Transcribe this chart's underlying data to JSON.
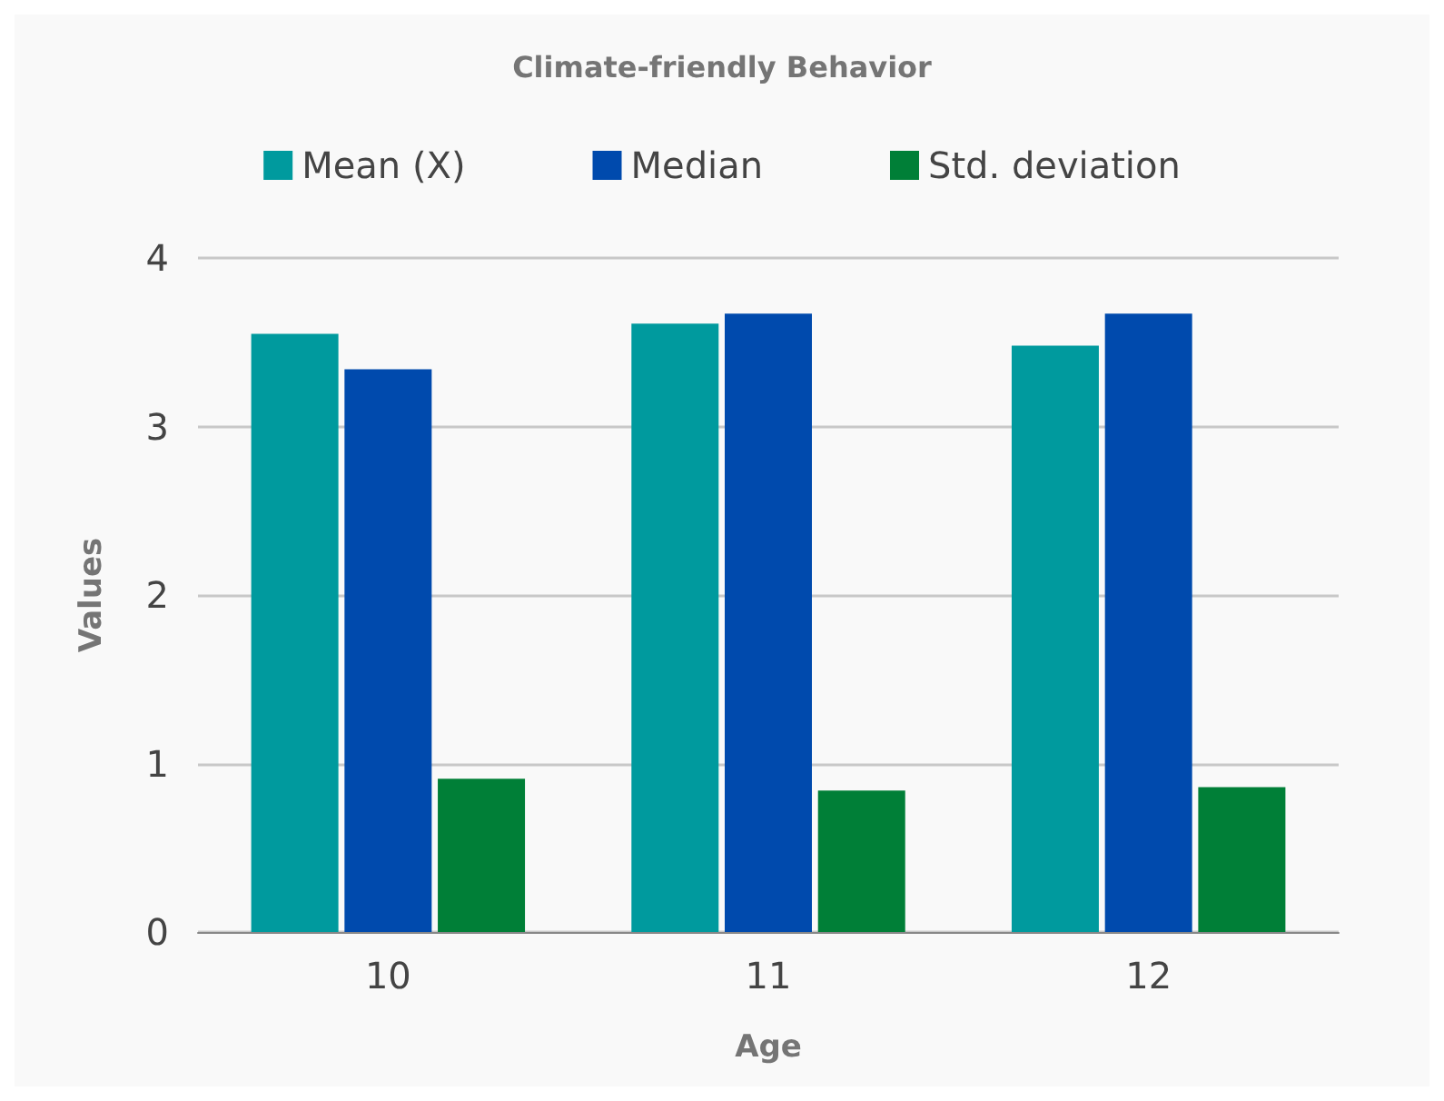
{
  "chart_data": {
    "type": "bar",
    "title": "Climate-friendly Behavior",
    "xlabel": "Age",
    "ylabel": "Values",
    "categories": [
      "10",
      "11",
      "12"
    ],
    "series": [
      {
        "name": "Mean (X)",
        "color": "#009a9e",
        "values": [
          3.55,
          3.61,
          3.48
        ]
      },
      {
        "name": "Median",
        "color": "#004aad",
        "values": [
          3.34,
          3.67,
          3.67
        ]
      },
      {
        "name": "Std. deviation",
        "color": "#007f37",
        "values": [
          0.91,
          0.84,
          0.86
        ]
      }
    ],
    "ylim": [
      0,
      4
    ],
    "yticks": [
      0,
      1,
      2,
      3,
      4
    ],
    "grid": "y",
    "legend": "top"
  }
}
